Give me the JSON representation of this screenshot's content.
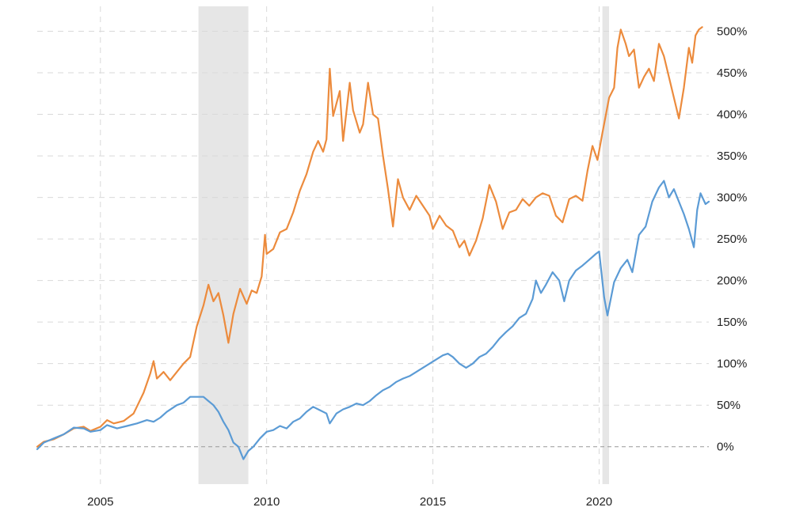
{
  "chart_data": {
    "type": "line",
    "title": "",
    "xlabel": "",
    "ylabel": "",
    "x_ticks": [
      "2005",
      "2010",
      "2015",
      "2020"
    ],
    "y_ticks": [
      "0%",
      "50%",
      "100%",
      "150%",
      "200%",
      "250%",
      "300%",
      "350%",
      "400%",
      "450%",
      "500%"
    ],
    "x_range": [
      2003.1,
      2023.3
    ],
    "y_range": [
      -45,
      530
    ],
    "grid": true,
    "legend": "none",
    "recessions": [
      {
        "start": 2007.95,
        "end": 2009.45
      },
      {
        "start": 2020.1,
        "end": 2020.3
      }
    ],
    "colors": {
      "orange_series": "#ec8b3d",
      "blue_series": "#5b9bd5",
      "recession_shade": "#e6e6e6",
      "grid": "#d9d9d9",
      "zero_line": "#999999"
    },
    "series": [
      {
        "color": "#ec8b3d",
        "points": [
          [
            2003.1,
            0
          ],
          [
            2003.3,
            6
          ],
          [
            2003.6,
            9
          ],
          [
            2003.9,
            15
          ],
          [
            2004.2,
            22
          ],
          [
            2004.5,
            24
          ],
          [
            2004.7,
            19
          ],
          [
            2005.0,
            24
          ],
          [
            2005.2,
            32
          ],
          [
            2005.4,
            28
          ],
          [
            2005.7,
            31
          ],
          [
            2006.0,
            40
          ],
          [
            2006.3,
            65
          ],
          [
            2006.5,
            88
          ],
          [
            2006.6,
            103
          ],
          [
            2006.7,
            82
          ],
          [
            2006.9,
            90
          ],
          [
            2007.1,
            80
          ],
          [
            2007.3,
            90
          ],
          [
            2007.5,
            100
          ],
          [
            2007.7,
            108
          ],
          [
            2007.9,
            145
          ],
          [
            2008.1,
            170
          ],
          [
            2008.25,
            195
          ],
          [
            2008.4,
            175
          ],
          [
            2008.55,
            185
          ],
          [
            2008.7,
            158
          ],
          [
            2008.85,
            125
          ],
          [
            2009.0,
            160
          ],
          [
            2009.2,
            190
          ],
          [
            2009.4,
            172
          ],
          [
            2009.55,
            188
          ],
          [
            2009.7,
            185
          ],
          [
            2009.85,
            205
          ],
          [
            2009.95,
            255
          ],
          [
            2010.0,
            232
          ],
          [
            2010.2,
            238
          ],
          [
            2010.4,
            258
          ],
          [
            2010.6,
            262
          ],
          [
            2010.8,
            282
          ],
          [
            2011.0,
            308
          ],
          [
            2011.2,
            328
          ],
          [
            2011.4,
            355
          ],
          [
            2011.55,
            368
          ],
          [
            2011.7,
            355
          ],
          [
            2011.8,
            370
          ],
          [
            2011.9,
            455
          ],
          [
            2012.0,
            398
          ],
          [
            2012.2,
            428
          ],
          [
            2012.3,
            368
          ],
          [
            2012.5,
            438
          ],
          [
            2012.6,
            405
          ],
          [
            2012.8,
            378
          ],
          [
            2012.9,
            388
          ],
          [
            2013.05,
            438
          ],
          [
            2013.2,
            400
          ],
          [
            2013.35,
            395
          ],
          [
            2013.5,
            350
          ],
          [
            2013.65,
            310
          ],
          [
            2013.8,
            265
          ],
          [
            2013.95,
            322
          ],
          [
            2014.1,
            300
          ],
          [
            2014.3,
            285
          ],
          [
            2014.5,
            302
          ],
          [
            2014.7,
            290
          ],
          [
            2014.9,
            278
          ],
          [
            2015.0,
            262
          ],
          [
            2015.2,
            278
          ],
          [
            2015.4,
            266
          ],
          [
            2015.6,
            260
          ],
          [
            2015.8,
            240
          ],
          [
            2015.95,
            248
          ],
          [
            2016.1,
            230
          ],
          [
            2016.3,
            248
          ],
          [
            2016.5,
            275
          ],
          [
            2016.7,
            315
          ],
          [
            2016.9,
            295
          ],
          [
            2017.1,
            262
          ],
          [
            2017.3,
            282
          ],
          [
            2017.5,
            285
          ],
          [
            2017.7,
            298
          ],
          [
            2017.9,
            290
          ],
          [
            2018.1,
            300
          ],
          [
            2018.3,
            305
          ],
          [
            2018.5,
            302
          ],
          [
            2018.7,
            278
          ],
          [
            2018.9,
            270
          ],
          [
            2019.1,
            298
          ],
          [
            2019.3,
            302
          ],
          [
            2019.5,
            296
          ],
          [
            2019.65,
            332
          ],
          [
            2019.8,
            362
          ],
          [
            2019.95,
            345
          ],
          [
            2020.1,
            378
          ],
          [
            2020.3,
            420
          ],
          [
            2020.45,
            432
          ],
          [
            2020.55,
            480
          ],
          [
            2020.65,
            502
          ],
          [
            2020.8,
            485
          ],
          [
            2020.9,
            470
          ],
          [
            2021.05,
            478
          ],
          [
            2021.2,
            432
          ],
          [
            2021.35,
            445
          ],
          [
            2021.5,
            455
          ],
          [
            2021.65,
            440
          ],
          [
            2021.8,
            485
          ],
          [
            2021.95,
            470
          ],
          [
            2022.1,
            445
          ],
          [
            2022.25,
            420
          ],
          [
            2022.4,
            395
          ],
          [
            2022.55,
            432
          ],
          [
            2022.7,
            480
          ],
          [
            2022.8,
            462
          ],
          [
            2022.9,
            495
          ],
          [
            2023.0,
            502
          ],
          [
            2023.1,
            505
          ]
        ]
      },
      {
        "color": "#5b9bd5",
        "points": [
          [
            2003.1,
            -3
          ],
          [
            2003.3,
            5
          ],
          [
            2003.6,
            10
          ],
          [
            2003.9,
            15
          ],
          [
            2004.2,
            23
          ],
          [
            2004.5,
            22
          ],
          [
            2004.7,
            18
          ],
          [
            2005.0,
            20
          ],
          [
            2005.2,
            26
          ],
          [
            2005.5,
            22
          ],
          [
            2005.8,
            25
          ],
          [
            2006.1,
            28
          ],
          [
            2006.4,
            32
          ],
          [
            2006.6,
            30
          ],
          [
            2006.8,
            35
          ],
          [
            2007.0,
            42
          ],
          [
            2007.3,
            50
          ],
          [
            2007.5,
            53
          ],
          [
            2007.7,
            60
          ],
          [
            2007.9,
            60
          ],
          [
            2008.1,
            60
          ],
          [
            2008.25,
            55
          ],
          [
            2008.4,
            50
          ],
          [
            2008.55,
            42
          ],
          [
            2008.7,
            30
          ],
          [
            2008.85,
            20
          ],
          [
            2009.0,
            5
          ],
          [
            2009.15,
            0
          ],
          [
            2009.3,
            -15
          ],
          [
            2009.45,
            -5
          ],
          [
            2009.6,
            0
          ],
          [
            2009.8,
            10
          ],
          [
            2010.0,
            18
          ],
          [
            2010.2,
            20
          ],
          [
            2010.4,
            25
          ],
          [
            2010.6,
            22
          ],
          [
            2010.8,
            30
          ],
          [
            2011.0,
            34
          ],
          [
            2011.2,
            42
          ],
          [
            2011.4,
            48
          ],
          [
            2011.6,
            44
          ],
          [
            2011.8,
            40
          ],
          [
            2011.9,
            28
          ],
          [
            2012.1,
            40
          ],
          [
            2012.3,
            45
          ],
          [
            2012.5,
            48
          ],
          [
            2012.7,
            52
          ],
          [
            2012.9,
            50
          ],
          [
            2013.1,
            55
          ],
          [
            2013.3,
            62
          ],
          [
            2013.5,
            68
          ],
          [
            2013.7,
            72
          ],
          [
            2013.9,
            78
          ],
          [
            2014.1,
            82
          ],
          [
            2014.3,
            85
          ],
          [
            2014.5,
            90
          ],
          [
            2014.7,
            95
          ],
          [
            2014.9,
            100
          ],
          [
            2015.1,
            105
          ],
          [
            2015.3,
            110
          ],
          [
            2015.45,
            112
          ],
          [
            2015.6,
            108
          ],
          [
            2015.8,
            100
          ],
          [
            2016.0,
            95
          ],
          [
            2016.2,
            100
          ],
          [
            2016.4,
            108
          ],
          [
            2016.6,
            112
          ],
          [
            2016.8,
            120
          ],
          [
            2017.0,
            130
          ],
          [
            2017.2,
            138
          ],
          [
            2017.4,
            145
          ],
          [
            2017.6,
            155
          ],
          [
            2017.8,
            160
          ],
          [
            2018.0,
            178
          ],
          [
            2018.1,
            200
          ],
          [
            2018.25,
            185
          ],
          [
            2018.4,
            195
          ],
          [
            2018.6,
            210
          ],
          [
            2018.8,
            200
          ],
          [
            2018.95,
            175
          ],
          [
            2019.1,
            200
          ],
          [
            2019.3,
            212
          ],
          [
            2019.5,
            218
          ],
          [
            2019.7,
            225
          ],
          [
            2019.9,
            232
          ],
          [
            2020.0,
            235
          ],
          [
            2020.15,
            180
          ],
          [
            2020.25,
            158
          ],
          [
            2020.45,
            198
          ],
          [
            2020.65,
            215
          ],
          [
            2020.85,
            225
          ],
          [
            2021.0,
            210
          ],
          [
            2021.2,
            255
          ],
          [
            2021.4,
            265
          ],
          [
            2021.6,
            295
          ],
          [
            2021.8,
            312
          ],
          [
            2021.95,
            320
          ],
          [
            2022.1,
            300
          ],
          [
            2022.25,
            310
          ],
          [
            2022.4,
            295
          ],
          [
            2022.55,
            280
          ],
          [
            2022.7,
            262
          ],
          [
            2022.85,
            240
          ],
          [
            2022.95,
            285
          ],
          [
            2023.05,
            305
          ],
          [
            2023.2,
            292
          ],
          [
            2023.3,
            295
          ]
        ]
      }
    ]
  }
}
